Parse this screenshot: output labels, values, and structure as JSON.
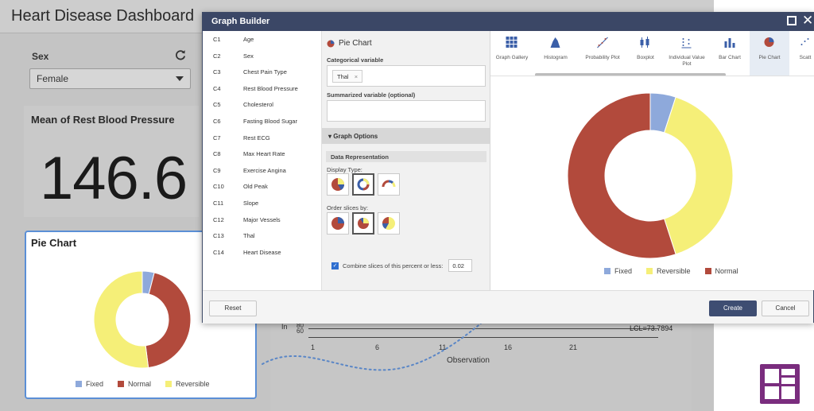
{
  "dashboard": {
    "title": "Heart Disease Dashboard",
    "sex_filter": {
      "label": "Sex",
      "value": "Female",
      "refresh_icon": "refresh-icon"
    },
    "mean_card": {
      "title": "Mean of Rest Blood Pressure",
      "value": "146.6"
    },
    "pie_card": {
      "title": "Pie Chart"
    },
    "control_chart": {
      "y_label_fragment": "In",
      "y_ticks": [
        "80",
        "60"
      ],
      "lcl_label": "LCL=73.7894",
      "x_ticks": [
        "1",
        "6",
        "11",
        "16",
        "21"
      ],
      "x_label": "Observation"
    },
    "logo_icon": "app-logo-icon"
  },
  "graph_builder": {
    "title": "Graph Builder",
    "maximize_icon": "maximize-icon",
    "close_icon": "close-icon",
    "variables": [
      {
        "col": "C1",
        "name": "Age"
      },
      {
        "col": "C2",
        "name": "Sex"
      },
      {
        "col": "C3",
        "name": "Chest Pain Type"
      },
      {
        "col": "C4",
        "name": "Rest Blood Pressure"
      },
      {
        "col": "C5",
        "name": "Cholesterol"
      },
      {
        "col": "C6",
        "name": "Fasting Blood Sugar"
      },
      {
        "col": "C7",
        "name": "Rest ECG"
      },
      {
        "col": "C8",
        "name": "Max Heart Rate"
      },
      {
        "col": "C9",
        "name": "Exercise Angina"
      },
      {
        "col": "C10",
        "name": "Old Peak"
      },
      {
        "col": "C11",
        "name": "Slope"
      },
      {
        "col": "C12",
        "name": "Major Vessels"
      },
      {
        "col": "C13",
        "name": "Thal"
      },
      {
        "col": "C14",
        "name": "Heart Disease"
      }
    ],
    "options": {
      "header": "Pie Chart",
      "categorical_label": "Categorical variable",
      "categorical_chip": "Thal",
      "chip_remove": "×",
      "summarized_label": "Summarized variable (optional)",
      "graph_options": "Graph Options",
      "data_representation": "Data Representation",
      "display_type": "Display Type:",
      "order_slices": "Order slices by:",
      "combine_label": "Combine slices of this percent or less:",
      "combine_checked": true,
      "combine_value": "0.02"
    },
    "gallery": [
      {
        "label": "Graph Gallery",
        "icon": "grid-icon"
      },
      {
        "label": "Histogram",
        "icon": "histogram-icon"
      },
      {
        "label": "Probability Plot",
        "icon": "probability-plot-icon"
      },
      {
        "label": "Boxplot",
        "icon": "boxplot-icon"
      },
      {
        "label": "Individual Value Plot",
        "icon": "individual-value-plot-icon"
      },
      {
        "label": "Bar Chart",
        "icon": "bar-chart-icon"
      },
      {
        "label": "Pie Chart",
        "icon": "pie-chart-icon",
        "selected": true
      },
      {
        "label": "Scatt",
        "icon": "scatterplot-icon"
      }
    ],
    "buttons": {
      "reset": "Reset",
      "create": "Create",
      "cancel": "Cancel"
    }
  },
  "chart_data": [
    {
      "type": "pie",
      "display": "donut",
      "categories": [
        "Fixed",
        "Reversible",
        "Normal"
      ],
      "values": [
        0.05,
        0.4,
        0.55
      ],
      "colors": {
        "Fixed": "#8ea9db",
        "Reversible": "#f5ef78",
        "Normal": "#b24a3c"
      },
      "legend_position": "bottom"
    },
    {
      "type": "pie",
      "display": "donut",
      "categories": [
        "Fixed",
        "Normal",
        "Reversible"
      ],
      "values": [
        0.04,
        0.44,
        0.52
      ],
      "colors": {
        "Fixed": "#8ea9db",
        "Normal": "#b24a3c",
        "Reversible": "#f5ef78"
      },
      "legend_position": "bottom"
    }
  ]
}
